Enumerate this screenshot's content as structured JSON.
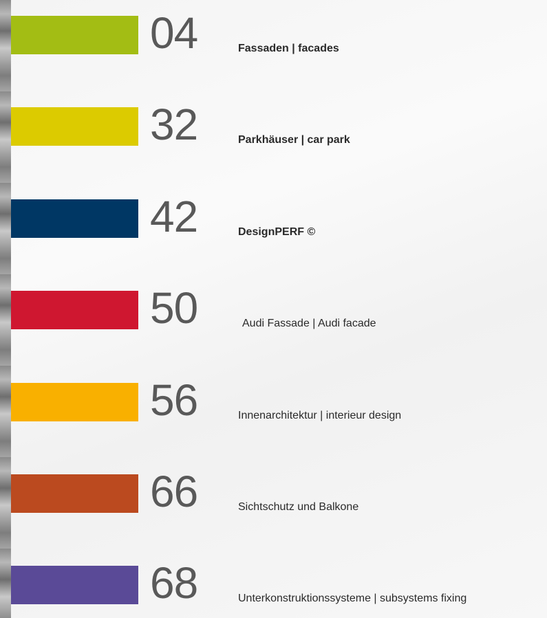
{
  "entries": [
    {
      "number": "04",
      "label": "Fassaden | facades"
    },
    {
      "number": "32",
      "label": "Parkhäuser | car park"
    },
    {
      "number": "42",
      "label": "DesignPERF ©"
    },
    {
      "number": "50",
      "label": "Audi Fassade | Audi facade"
    },
    {
      "number": "56",
      "label": "Innenarchitektur | interieur design"
    },
    {
      "number": "66",
      "label": "Sichtschutz und Balkone"
    },
    {
      "number": "68",
      "label": "Unterkonstruktionssysteme | subsystems fixing"
    }
  ]
}
